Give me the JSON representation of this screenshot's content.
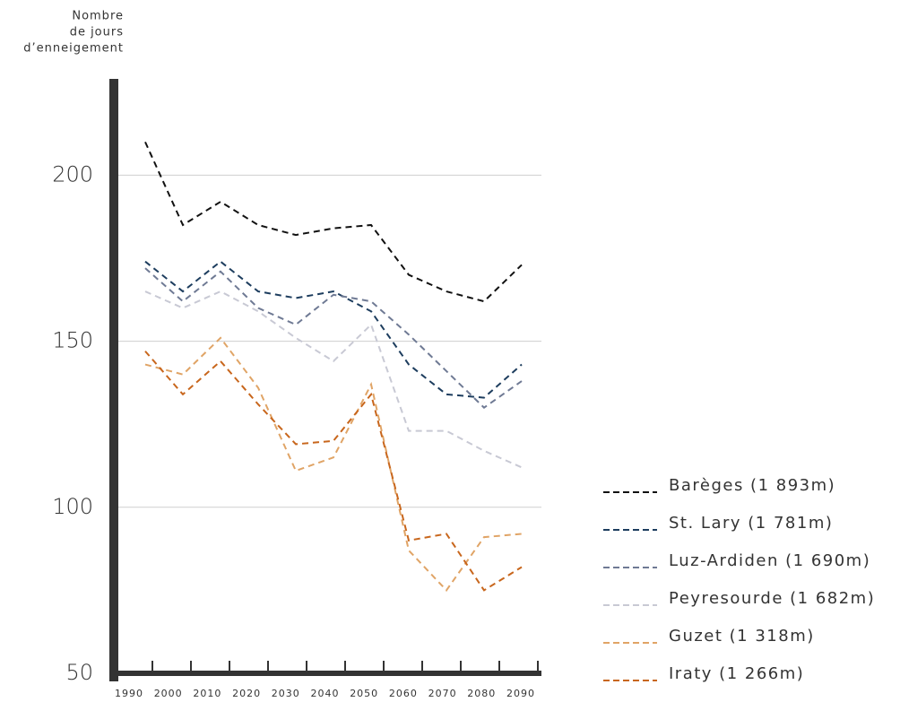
{
  "chart_data": {
    "type": "line",
    "ylabel": [
      "Nombre",
      "de jours",
      "d’enneigement"
    ],
    "categories": [
      "1990",
      "2000",
      "2010",
      "2020",
      "2030",
      "2040",
      "2050",
      "2060",
      "2070",
      "2080",
      "2090"
    ],
    "series": [
      {
        "name": "Barèges (1 893m)",
        "color": "#111111",
        "values": [
          210,
          185,
          192,
          185,
          182,
          184,
          185,
          170,
          165,
          162,
          173
        ]
      },
      {
        "name": "St. Lary (1 781m)",
        "color": "#1d3d5e",
        "values": [
          174,
          165,
          174,
          165,
          163,
          165,
          159,
          143,
          134,
          133,
          143
        ]
      },
      {
        "name": "Luz-Ardiden (1 690m)",
        "color": "#6f7a94",
        "values": [
          172,
          162,
          171,
          160,
          155,
          164,
          162,
          152,
          141,
          130,
          138
        ]
      },
      {
        "name": "Peyresourde (1 682m)",
        "color": "#c8c9d4",
        "values": [
          165,
          160,
          165,
          159,
          151,
          144,
          155,
          123,
          123,
          117,
          112
        ]
      },
      {
        "name": "Guzet (1 318m)",
        "color": "#e0a466",
        "values": [
          143,
          140,
          151,
          136,
          111,
          115,
          137,
          87,
          75,
          91,
          92
        ]
      },
      {
        "name": "Iraty (1 266m)",
        "color": "#c8661c",
        "values": [
          147,
          134,
          144,
          131,
          119,
          120,
          134,
          90,
          92,
          75,
          82
        ]
      }
    ],
    "ylim": [
      50,
      229
    ],
    "yticks": [
      50,
      100,
      150,
      200
    ],
    "grid": true
  }
}
